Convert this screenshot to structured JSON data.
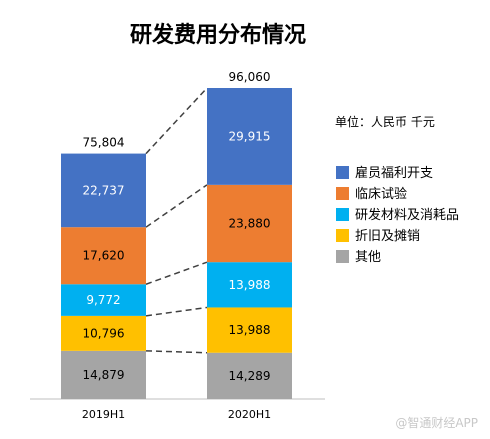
{
  "chart_data": {
    "type": "bar",
    "stacked": true,
    "title": "研发费用分布情况",
    "unit": "单位：人民币 千元",
    "categories": [
      "2019H1",
      "2020H1"
    ],
    "totals": [
      "75,804",
      "96,060"
    ],
    "series": [
      {
        "name": "其他",
        "color": "#a5a5a5",
        "values": [
          14879,
          14289
        ],
        "labels": [
          "14,879",
          "14,289"
        ],
        "label_color": "#000000"
      },
      {
        "name": "折旧及摊销",
        "color": "#ffc000",
        "values": [
          10796,
          13988
        ],
        "labels": [
          "10,796",
          "13,988"
        ],
        "label_color": "#000000"
      },
      {
        "name": "研发材料及消耗品",
        "color": "#00b0f0",
        "values": [
          9772,
          13988
        ],
        "labels": [
          "9,772",
          "13,988"
        ],
        "label_color": "#ffffff"
      },
      {
        "name": "临床试验",
        "color": "#ed7d31",
        "values": [
          17620,
          23880
        ],
        "labels": [
          "17,620",
          "23,880"
        ],
        "label_color": "#000000"
      },
      {
        "name": "雇员福利开支",
        "color": "#4472c4",
        "values": [
          22737,
          29915
        ],
        "labels": [
          "22,737",
          "29,915"
        ],
        "label_color": "#ffffff"
      }
    ],
    "legend_order": [
      "雇员福利开支",
      "临床试验",
      "研发材料及消耗品",
      "折旧及摊销",
      "其他"
    ],
    "connector_lines": "dashed",
    "grid": false,
    "legend_position": "right"
  },
  "watermark": "@智通财经APP"
}
